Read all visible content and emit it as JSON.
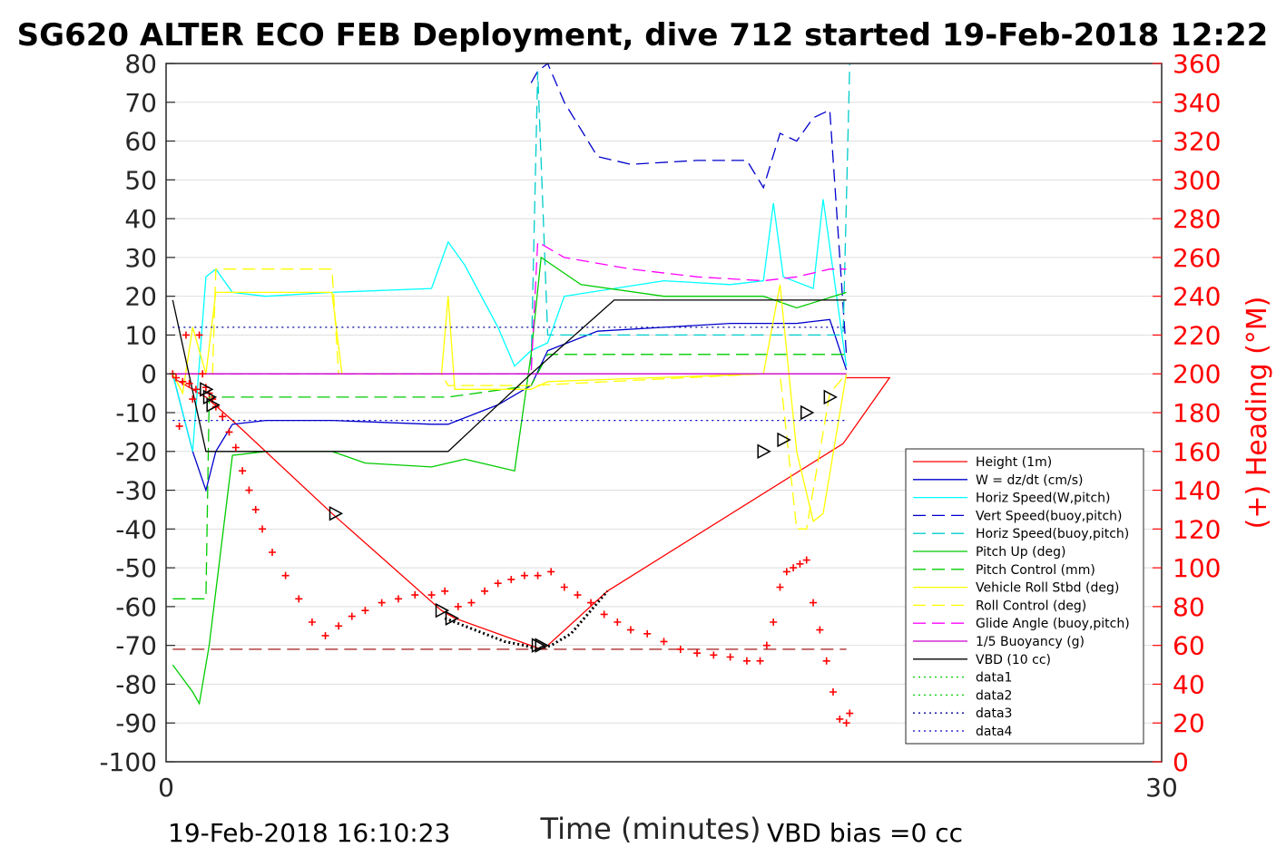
{
  "chart_data": {
    "type": "line",
    "title": "SG620 ALTER ECO FEB Deployment, dive 712 started 19-Feb-2018 12:22",
    "xlabel": "Time (minutes)",
    "ylabel": "",
    "ylabel_right": "(+) Heading (°M)",
    "xlim": [
      0,
      30
    ],
    "ylim": [
      -100,
      80
    ],
    "ylim_right": [
      0,
      360
    ],
    "x_ticks": [
      "0",
      "30"
    ],
    "y_ticks": [
      "80",
      "70",
      "60",
      "50",
      "40",
      "30",
      "20",
      "10",
      "0",
      "-10",
      "-20",
      "-30",
      "-40",
      "-50",
      "-60",
      "-70",
      "-80",
      "-90",
      "-100"
    ],
    "y_ticks_right": [
      "360",
      "340",
      "320",
      "300",
      "280",
      "260",
      "240",
      "220",
      "200",
      "180",
      "160",
      "140",
      "120",
      "100",
      "80",
      "60",
      "40",
      "20",
      "0"
    ],
    "grid": true,
    "legend_position": "lower-right",
    "footer_left": "19-Feb-2018 16:10:23",
    "footer_right": "VBD bias =0 cc",
    "series": [
      {
        "name": "Height (1m)",
        "color": "#ff0000",
        "style": "solid",
        "x": [
          0.2,
          1.2,
          2.0,
          5.0,
          8.3,
          8.7,
          11.3,
          11.5,
          13.3,
          20.4,
          21.8,
          20.5
        ],
        "y": [
          -1,
          -6,
          -12,
          -36,
          -61,
          -63,
          -71,
          -70,
          -56,
          -18,
          -1,
          -1
        ]
      },
      {
        "name": "W = dz/dt (cm/s)",
        "color": "#0000cc",
        "style": "solid",
        "x": [
          0.2,
          0.8,
          1.2,
          1.5,
          2.0,
          3.0,
          5.0,
          8.0,
          8.5,
          10.0,
          11.0,
          11.5,
          13.0,
          15.0,
          17.0,
          19.0,
          20.0,
          20.5
        ],
        "y": [
          0,
          -20,
          -30,
          -20,
          -13,
          -12,
          -12,
          -13,
          -13,
          -8,
          -3,
          6,
          11,
          12,
          13,
          13,
          14,
          1
        ]
      },
      {
        "name": "Horiz Speed(W,pitch)",
        "color": "#00ffff",
        "style": "solid",
        "x": [
          0.2,
          0.8,
          1.2,
          1.5,
          2.0,
          3.0,
          5.0,
          8.0,
          8.5,
          9.0,
          10.0,
          10.5,
          11.0,
          11.5,
          12.0,
          15.0,
          17.0,
          18.0,
          18.3,
          18.6,
          19.5,
          19.8,
          20.5
        ],
        "y": [
          0,
          -20,
          25,
          27,
          21,
          20,
          21,
          22,
          34,
          28,
          12,
          2,
          6,
          8,
          20,
          24,
          23,
          24,
          44,
          25,
          22,
          45,
          2
        ]
      },
      {
        "name": "Vert Speed(buoy,pitch)",
        "color": "#0000cc",
        "style": "dashed",
        "x": [
          11.0,
          11.2,
          11.5,
          12.0,
          13.0,
          14.0,
          16.0,
          17.5,
          18.0,
          18.5,
          19.0,
          19.5,
          20.0,
          20.5
        ],
        "y": [
          75,
          78,
          80,
          70,
          56,
          54,
          55,
          55,
          48,
          62,
          60,
          66,
          68,
          5
        ]
      },
      {
        "name": "Horiz Speed(buoy,pitch)",
        "color": "#00cccc",
        "style": "dashed",
        "x": [
          11.0,
          11.2,
          11.5,
          20.4,
          20.6
        ],
        "y": [
          2,
          78,
          10,
          10,
          80
        ]
      },
      {
        "name": "Pitch Up (deg)",
        "color": "#00cc00",
        "style": "solid",
        "x": [
          0.2,
          0.8,
          1.0,
          1.3,
          2.0,
          3.0,
          5.0,
          6.0,
          8.0,
          8.5,
          9.0,
          10.5,
          11.0,
          11.3,
          12.5,
          15.0,
          18.0,
          19.0,
          20.5
        ],
        "y": [
          -75,
          -82,
          -85,
          -70,
          -21,
          -20,
          -20,
          -23,
          -24,
          -23,
          -22,
          -25,
          5,
          30,
          23,
          20,
          20,
          17,
          21
        ]
      },
      {
        "name": "Pitch Control (mm)",
        "color": "#00cc00",
        "style": "dashed",
        "x": [
          0.2,
          1.2,
          1.3,
          1.4,
          8.5,
          11.0,
          11.5,
          19.0,
          20.5
        ],
        "y": [
          -58,
          -58,
          -6,
          -6,
          -6,
          -3,
          5,
          5,
          5
        ]
      },
      {
        "name": "Vehicle Roll Stbd (deg)",
        "color": "#ffff00",
        "style": "solid",
        "x": [
          0.2,
          0.5,
          0.8,
          1.2,
          1.5,
          5.0,
          5.3,
          8.3,
          8.5,
          8.7,
          11.0,
          11.5,
          18.0,
          18.5,
          19.0,
          19.5,
          19.8,
          20.5
        ],
        "y": [
          0,
          -5,
          12,
          0,
          21,
          21,
          0,
          0,
          20,
          -4,
          -4,
          -2,
          0,
          23,
          -20,
          -38,
          -36,
          0
        ]
      },
      {
        "name": "Roll Control (deg)",
        "color": "#ffff00",
        "style": "dashed",
        "x": [
          0.2,
          1.4,
          1.5,
          5.0,
          5.2,
          8.3,
          8.5,
          11.0,
          18.0,
          18.5,
          19.0,
          19.3,
          20.0,
          20.5
        ],
        "y": [
          0,
          0,
          27,
          27,
          0,
          0,
          -3,
          -3,
          0,
          0,
          -40,
          -40,
          -5,
          0
        ]
      },
      {
        "name": "Glide Angle (buoy,pitch)",
        "color": "#ff00ff",
        "style": "dashed",
        "x": [
          0.2,
          11.0,
          11.2,
          12.0,
          14.0,
          16.0,
          18.0,
          19.0,
          20.0,
          20.5
        ],
        "y": [
          0,
          0,
          34,
          30,
          27,
          25,
          24,
          25,
          27,
          27
        ]
      },
      {
        "name": "1/5 Buoyancy (g)",
        "color": "#cc00cc",
        "style": "solid",
        "x": [
          0.2,
          20.5
        ],
        "y": [
          0,
          0
        ]
      },
      {
        "name": "VBD (10 cc)",
        "color": "#000000",
        "style": "solid",
        "x": [
          0.2,
          1.2,
          8.5,
          11.0,
          13.5,
          20.5
        ],
        "y": [
          19,
          -20,
          -20,
          0,
          19,
          19
        ]
      },
      {
        "name": "data1",
        "color": "#00cc00",
        "style": "dotted",
        "x": [],
        "y": []
      },
      {
        "name": "data2",
        "color": "#00cc00",
        "style": "dotted",
        "x": [],
        "y": []
      },
      {
        "name": "data3",
        "color": "#000099",
        "style": "dotted",
        "x": [
          0.2,
          20.5
        ],
        "y": [
          12,
          12
        ]
      },
      {
        "name": "data4",
        "color": "#0000cc",
        "style": "dotted",
        "x": [
          0.2,
          20.5
        ],
        "y": [
          -12,
          -12
        ]
      }
    ],
    "reference_lines": [
      {
        "color": "#990000",
        "style": "dashed",
        "y": -71,
        "x": [
          0.2,
          20.5
        ]
      }
    ],
    "heading": {
      "color": "#ff0000",
      "marker": "+",
      "axis": "right",
      "x": [
        0.2,
        0.3,
        0.4,
        0.5,
        0.6,
        0.7,
        0.8,
        0.9,
        1.0,
        1.1,
        1.2,
        1.3,
        1.4,
        1.5,
        1.7,
        1.9,
        2.1,
        2.3,
        2.5,
        2.7,
        2.9,
        3.2,
        3.6,
        4.0,
        4.4,
        4.8,
        5.2,
        5.6,
        6.0,
        6.5,
        7.0,
        7.5,
        8.0,
        8.4,
        8.8,
        9.2,
        9.6,
        10.0,
        10.4,
        10.8,
        11.2,
        11.6,
        12.0,
        12.4,
        12.8,
        13.2,
        13.6,
        14.0,
        14.5,
        15.0,
        15.5,
        16.0,
        16.5,
        17.0,
        17.5,
        17.9,
        18.1,
        18.3,
        18.5,
        18.7,
        18.9,
        19.1,
        19.3,
        19.5,
        19.7,
        19.9,
        20.1,
        20.3,
        20.5,
        20.6
      ],
      "y": [
        200,
        198,
        173,
        196,
        220,
        195,
        187,
        192,
        220,
        200,
        193,
        190,
        187,
        183,
        178,
        170,
        162,
        150,
        140,
        130,
        120,
        108,
        96,
        84,
        72,
        65,
        70,
        75,
        78,
        82,
        84,
        86,
        86,
        88,
        80,
        82,
        88,
        92,
        94,
        96,
        96,
        98,
        90,
        86,
        82,
        76,
        72,
        68,
        66,
        62,
        58,
        56,
        55,
        54,
        52,
        52,
        60,
        72,
        90,
        98,
        100,
        102,
        104,
        82,
        68,
        52,
        36,
        22,
        20,
        25
      ]
    },
    "markers": {
      "shape": "triangle",
      "x": [
        1.2,
        1.3,
        1.4,
        5.1,
        8.3,
        8.6,
        11.2,
        11.3,
        18.0,
        18.6,
        19.3,
        20.0
      ],
      "y": [
        -4,
        -6,
        -8,
        -36,
        -61,
        -63,
        -70,
        -70,
        -20,
        -17,
        -10,
        -6
      ]
    },
    "dotted_segment": {
      "color": "#000000",
      "x": [
        8.4,
        9.0,
        9.6,
        10.2,
        10.8,
        11.2,
        11.6,
        12.2,
        12.8,
        13.3
      ],
      "y": [
        -63,
        -65,
        -67,
        -69,
        -70,
        -71,
        -70,
        -67,
        -61,
        -56
      ]
    }
  }
}
